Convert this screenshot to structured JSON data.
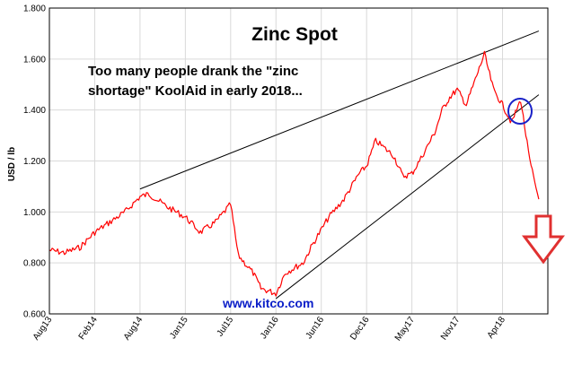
{
  "chart_data": {
    "type": "line",
    "title": "Zinc Spot",
    "xlabel": "",
    "ylabel": "USD / lb",
    "ylim": [
      0.6,
      1.8
    ],
    "y_ticks": [
      "0.600",
      "0.800",
      "1.000",
      "1.200",
      "1.400",
      "1.600",
      "1.800"
    ],
    "x_ticks": [
      "Aug13",
      "Feb14",
      "Aug14",
      "Jan15",
      "Jul15",
      "Jan16",
      "Jun16",
      "Dec16",
      "May17",
      "Nov17",
      "Apr18"
    ],
    "grid": true,
    "series": [
      {
        "color": "#ff0000",
        "x": [
          "Aug13",
          "Oct13",
          "Dec13",
          "Feb14",
          "Apr14",
          "Jun14",
          "Aug14",
          "Sep14",
          "Nov14",
          "Jan15",
          "Mar15",
          "May15",
          "Jul15",
          "Aug15",
          "Oct15",
          "Nov15",
          "Jan16",
          "Feb16",
          "Apr16",
          "May16",
          "Jul16",
          "Sep16",
          "Nov16",
          "Dec16",
          "Jan17",
          "Mar17",
          "Apr17",
          "May17",
          "Jun17",
          "Aug17",
          "Sep17",
          "Oct17",
          "Nov17",
          "Dec17",
          "Jan18",
          "Feb18",
          "Mar18",
          "Apr18",
          "May18",
          "Jun18",
          "Jul18",
          "Aug18"
        ],
        "y": [
          0.85,
          0.84,
          0.86,
          0.92,
          0.96,
          1.0,
          1.06,
          1.07,
          1.02,
          0.98,
          0.92,
          0.96,
          1.03,
          0.83,
          0.76,
          0.7,
          0.68,
          0.76,
          0.8,
          0.87,
          0.98,
          1.05,
          1.15,
          1.18,
          1.28,
          1.22,
          1.14,
          1.15,
          1.2,
          1.31,
          1.4,
          1.45,
          1.48,
          1.42,
          1.52,
          1.62,
          1.48,
          1.42,
          1.35,
          1.44,
          1.2,
          1.05
        ]
      }
    ],
    "trendlines": [
      {
        "from": {
          "x": "Aug14",
          "y": 1.09
        },
        "to": {
          "x": "Aug18",
          "y": 1.71
        }
      },
      {
        "from": {
          "x": "Jan16",
          "y": 0.66
        },
        "to": {
          "x": "Aug18",
          "y": 1.46
        }
      }
    ],
    "annotations": {
      "text_line1": "Too many people drank the \"zinc",
      "text_line2": "shortage\" KoolAid in early 2018...",
      "watermark": "www.kitco.com",
      "circle_color": "#1a22c8",
      "arrow_color": "#e03030"
    }
  }
}
